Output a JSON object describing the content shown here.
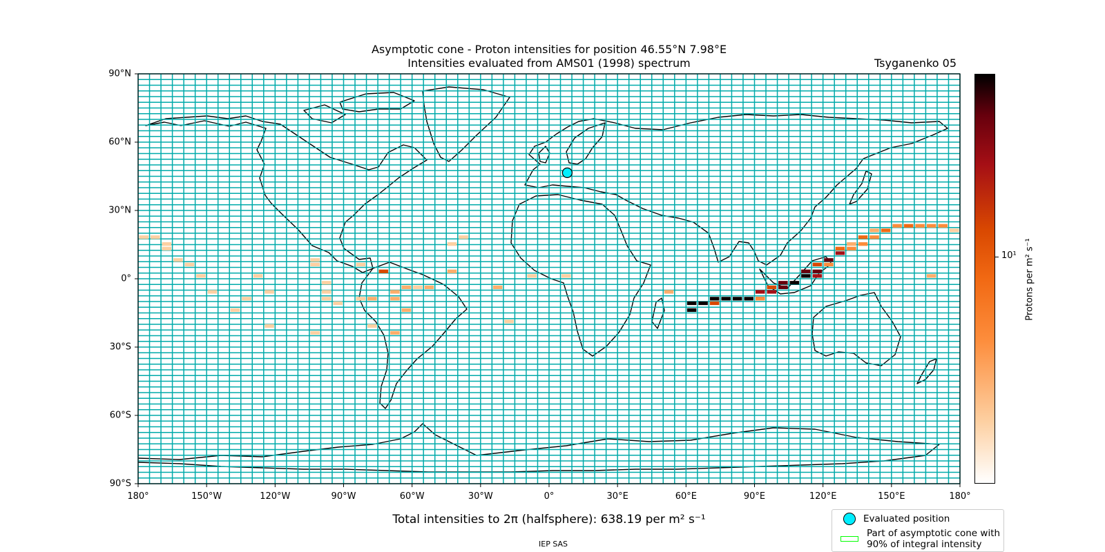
{
  "title_line1": "Asymptotic cone - Proton intensities for position 46.55°N 7.98°E",
  "title_line2": "Intensities evaluated from AMS01 (1998) spectrum",
  "model": "Tsyganenko 05",
  "y_ticks": [
    "90°N",
    "60°N",
    "30°N",
    "0°",
    "30°S",
    "60°S",
    "90°S"
  ],
  "x_ticks": [
    "180°",
    "150°W",
    "120°W",
    "90°W",
    "60°W",
    "30°W",
    "0°",
    "30°E",
    "60°E",
    "90°E",
    "120°E",
    "150°E",
    "180°"
  ],
  "colorbar": {
    "label": "Protons per m² s⁻¹",
    "tick_label": "10¹"
  },
  "total_text": "Total intensities to 2π (halfsphere): 638.19 per m² s⁻¹",
  "credit": "IEP SAS",
  "legend": {
    "evaluated": "Evaluated position",
    "cone_line1": "Part of asymptotic cone with",
    "cone_line2": "90% of integral intensity"
  },
  "colors": {
    "grid": "#00aaaa",
    "marker": "#00eeff",
    "cone": "#00ff00"
  },
  "map_data": {
    "type": "heatmap",
    "extent": {
      "lon": [
        -180,
        180
      ],
      "lat": [
        -90,
        90
      ]
    },
    "grid_step_deg": {
      "lon": 5,
      "lat": 2.5
    },
    "evaluated_position": {
      "lat": 46.55,
      "lon": 7.98
    },
    "cells_note_units": "level 1 (low) to 8 (high)",
    "cells": [
      [
        -180,
        17,
        1
      ],
      [
        -175,
        17,
        1
      ],
      [
        -170,
        14,
        1
      ],
      [
        -170,
        12,
        1
      ],
      [
        -165,
        7,
        1
      ],
      [
        -160,
        5,
        1
      ],
      [
        -155,
        0,
        1
      ],
      [
        -150,
        -7,
        1
      ],
      [
        -140,
        -15,
        1
      ],
      [
        -135,
        -10,
        1
      ],
      [
        -130,
        0,
        1
      ],
      [
        -125,
        -7,
        1
      ],
      [
        -125,
        -22,
        1
      ],
      [
        -105,
        7,
        1
      ],
      [
        -105,
        5,
        1
      ],
      [
        -105,
        -25,
        1
      ],
      [
        -100,
        -3,
        1
      ],
      [
        -100,
        -7,
        1
      ],
      [
        -100,
        -10,
        1
      ],
      [
        -95,
        -12,
        1
      ],
      [
        -85,
        5,
        1
      ],
      [
        -85,
        -10,
        1
      ],
      [
        -80,
        -10,
        2
      ],
      [
        -80,
        -22,
        1
      ],
      [
        -75,
        2,
        5
      ],
      [
        -70,
        -7,
        2
      ],
      [
        -70,
        -10,
        2
      ],
      [
        -70,
        -25,
        2
      ],
      [
        -65,
        -5,
        2
      ],
      [
        -65,
        -15,
        2
      ],
      [
        -60,
        -5,
        1
      ],
      [
        -55,
        -5,
        2
      ],
      [
        -45,
        14,
        1
      ],
      [
        -45,
        2,
        2
      ],
      [
        -40,
        17,
        1
      ],
      [
        -25,
        -5,
        2
      ],
      [
        -20,
        -20,
        1
      ],
      [
        -10,
        0,
        1
      ],
      [
        5,
        0,
        1
      ],
      [
        50,
        -7,
        2
      ],
      [
        60,
        -12,
        8
      ],
      [
        60,
        -15,
        8
      ],
      [
        65,
        -12,
        8
      ],
      [
        70,
        -10,
        8
      ],
      [
        70,
        -12,
        5
      ],
      [
        75,
        -10,
        8
      ],
      [
        80,
        -10,
        8
      ],
      [
        85,
        -10,
        8
      ],
      [
        90,
        -10,
        8
      ],
      [
        90,
        -7,
        6
      ],
      [
        90,
        -10,
        3
      ],
      [
        95,
        -5,
        5
      ],
      [
        95,
        -7,
        6
      ],
      [
        100,
        -3,
        7
      ],
      [
        100,
        -5,
        7
      ],
      [
        105,
        -3,
        8
      ],
      [
        110,
        2,
        7
      ],
      [
        110,
        0,
        8
      ],
      [
        115,
        0,
        6
      ],
      [
        115,
        2,
        7
      ],
      [
        115,
        5,
        5
      ],
      [
        120,
        5,
        3
      ],
      [
        120,
        7,
        7
      ],
      [
        125,
        10,
        6
      ],
      [
        125,
        12,
        4
      ],
      [
        130,
        12,
        3
      ],
      [
        130,
        14,
        2
      ],
      [
        135,
        14,
        3
      ],
      [
        135,
        17,
        4
      ],
      [
        140,
        17,
        3
      ],
      [
        140,
        20,
        2
      ],
      [
        145,
        20,
        4
      ],
      [
        150,
        22,
        3
      ],
      [
        155,
        22,
        4
      ],
      [
        160,
        22,
        3
      ],
      [
        165,
        22,
        3
      ],
      [
        170,
        22,
        3
      ],
      [
        175,
        20,
        1
      ],
      [
        165,
        0,
        2
      ]
    ]
  }
}
